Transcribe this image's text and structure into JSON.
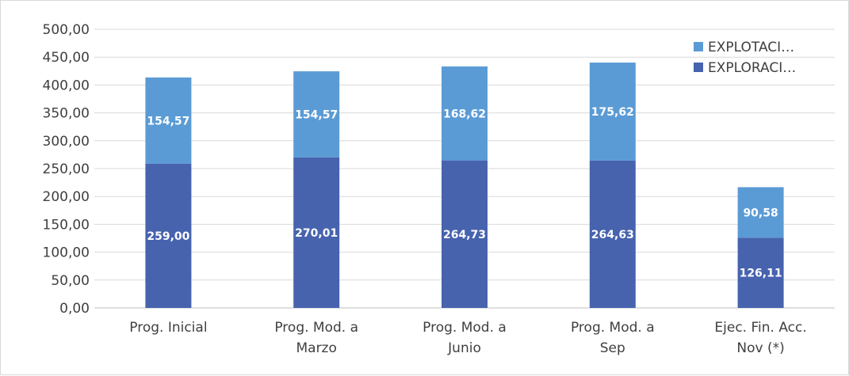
{
  "chart_data": {
    "type": "bar",
    "stacked": true,
    "categories": [
      [
        "Prog. Inicial"
      ],
      [
        "Prog. Mod. a",
        "Marzo"
      ],
      [
        "Prog. Mod. a",
        "Junio"
      ],
      [
        "Prog. Mod. a",
        "Sep"
      ],
      [
        "Ejec. Fin. Acc.",
        "Nov (*)"
      ]
    ],
    "series": [
      {
        "name": "EXPLORACI…",
        "color": "#4763ae",
        "values": [
          259.0,
          270.01,
          264.73,
          264.63,
          126.11
        ],
        "labels": [
          "259,00",
          "270,01",
          "264,73",
          "264,63",
          "126,11"
        ]
      },
      {
        "name": "EXPLOTACI…",
        "color": "#5b9bd5",
        "values": [
          154.57,
          154.57,
          168.62,
          175.62,
          90.58
        ],
        "labels": [
          "154,57",
          "154,57",
          "168,62",
          "175,62",
          "90,58"
        ]
      }
    ],
    "ylim": [
      0,
      500
    ],
    "yticks": [
      "0,00",
      "50,00",
      "100,00",
      "150,00",
      "200,00",
      "250,00",
      "300,00",
      "350,00",
      "400,00",
      "450,00",
      "500,00"
    ],
    "grid": true,
    "legend": "top-right",
    "title": "",
    "xlabel": "",
    "ylabel": ""
  }
}
